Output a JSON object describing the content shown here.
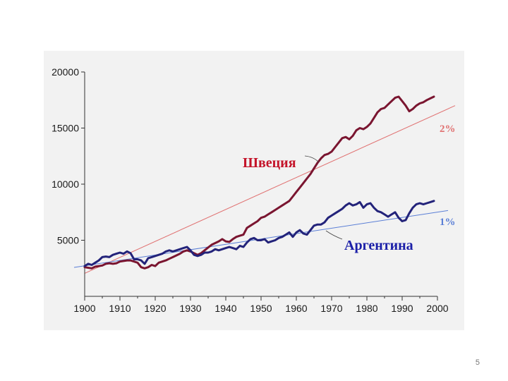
{
  "slide_number": "5",
  "chart_data": {
    "type": "line",
    "xlim": [
      1900,
      2000
    ],
    "ylim": [
      0,
      20000
    ],
    "x_ticks": [
      "1900",
      "1910",
      "1920",
      "1930",
      "1940",
      "1950",
      "1960",
      "1970",
      "1980",
      "1990",
      "2000"
    ],
    "y_ticks": [
      "5000",
      "10000",
      "15000",
      "20000"
    ],
    "grid": false,
    "series": [
      {
        "name": "Швеция",
        "color": "#7a1530",
        "label_color": "#c4142a",
        "x": [
          1900,
          1901,
          1902,
          1903,
          1904,
          1905,
          1906,
          1907,
          1908,
          1909,
          1910,
          1911,
          1912,
          1913,
          1914,
          1915,
          1916,
          1917,
          1918,
          1919,
          1920,
          1921,
          1922,
          1923,
          1924,
          1925,
          1926,
          1927,
          1928,
          1929,
          1930,
          1931,
          1932,
          1933,
          1934,
          1935,
          1936,
          1937,
          1938,
          1939,
          1940,
          1941,
          1942,
          1943,
          1944,
          1945,
          1946,
          1947,
          1948,
          1949,
          1950,
          1951,
          1952,
          1953,
          1954,
          1955,
          1956,
          1957,
          1958,
          1959,
          1960,
          1961,
          1962,
          1963,
          1964,
          1965,
          1966,
          1967,
          1968,
          1969,
          1970,
          1971,
          1972,
          1973,
          1974,
          1975,
          1976,
          1977,
          1978,
          1979,
          1980,
          1981,
          1982,
          1983,
          1984,
          1985,
          1986,
          1987,
          1988,
          1989,
          1990,
          1991,
          1992,
          1993,
          1994,
          1995,
          1996,
          1997,
          1998,
          1999
        ],
        "values": [
          2600,
          2550,
          2500,
          2650,
          2700,
          2750,
          2900,
          2950,
          2900,
          2950,
          3100,
          3150,
          3200,
          3200,
          3100,
          3000,
          2600,
          2500,
          2600,
          2800,
          2700,
          3000,
          3100,
          3200,
          3350,
          3500,
          3650,
          3800,
          4000,
          4100,
          4000,
          3850,
          3700,
          3850,
          4100,
          4350,
          4600,
          4750,
          4900,
          5100,
          4900,
          4850,
          5100,
          5300,
          5400,
          5500,
          6100,
          6300,
          6500,
          6700,
          7000,
          7100,
          7300,
          7500,
          7700,
          7900,
          8100,
          8300,
          8500,
          8900,
          9300,
          9700,
          10100,
          10500,
          10900,
          11400,
          11900,
          12300,
          12600,
          12700,
          12900,
          13300,
          13700,
          14100,
          14200,
          14000,
          14300,
          14800,
          15000,
          14900,
          15100,
          15400,
          15900,
          16400,
          16700,
          16800,
          17100,
          17400,
          17700,
          17800,
          17400,
          17000,
          16500,
          16700,
          17000,
          17200,
          17300,
          17500,
          17650,
          17800
        ]
      },
      {
        "name": "Аргентина",
        "color": "#23237a",
        "label_color": "#1c20a8",
        "x": [
          1900,
          1901,
          1902,
          1903,
          1904,
          1905,
          1906,
          1907,
          1908,
          1909,
          1910,
          1911,
          1912,
          1913,
          1914,
          1915,
          1916,
          1917,
          1918,
          1919,
          1920,
          1921,
          1922,
          1923,
          1924,
          1925,
          1926,
          1927,
          1928,
          1929,
          1930,
          1931,
          1932,
          1933,
          1934,
          1935,
          1936,
          1937,
          1938,
          1939,
          1940,
          1941,
          1942,
          1943,
          1944,
          1945,
          1946,
          1947,
          1948,
          1949,
          1950,
          1951,
          1952,
          1953,
          1954,
          1955,
          1956,
          1957,
          1958,
          1959,
          1960,
          1961,
          1962,
          1963,
          1964,
          1965,
          1966,
          1967,
          1968,
          1969,
          1970,
          1971,
          1972,
          1973,
          1974,
          1975,
          1976,
          1977,
          1978,
          1979,
          1980,
          1981,
          1982,
          1983,
          1984,
          1985,
          1986,
          1987,
          1988,
          1989,
          1990,
          1991,
          1992,
          1993,
          1994,
          1995,
          1996,
          1997,
          1998,
          1999
        ],
        "values": [
          2700,
          2900,
          2800,
          3000,
          3200,
          3500,
          3550,
          3500,
          3700,
          3800,
          3900,
          3800,
          4000,
          3850,
          3300,
          3300,
          3200,
          2900,
          3400,
          3500,
          3600,
          3700,
          3800,
          4000,
          4100,
          4000,
          4100,
          4200,
          4300,
          4400,
          4100,
          3700,
          3600,
          3700,
          3900,
          3900,
          4000,
          4200,
          4100,
          4200,
          4300,
          4400,
          4300,
          4200,
          4500,
          4400,
          4800,
          5100,
          5200,
          5000,
          5000,
          5100,
          4800,
          4900,
          5000,
          5200,
          5300,
          5500,
          5700,
          5300,
          5700,
          5900,
          5600,
          5500,
          5900,
          6300,
          6400,
          6400,
          6600,
          7000,
          7200,
          7400,
          7600,
          7800,
          8100,
          8300,
          8100,
          8200,
          8400,
          7900,
          8200,
          8300,
          7900,
          7600,
          7500,
          7300,
          7100,
          7300,
          7500,
          7000,
          6700,
          6800,
          7400,
          7900,
          8200,
          8300,
          8200,
          8300,
          8400,
          8500
        ]
      }
    ],
    "trend_lines": [
      {
        "label": "2%",
        "color": "#e07070",
        "x": [
          1900,
          2005
        ],
        "values": [
          2050,
          17000
        ]
      },
      {
        "label": "1%",
        "color": "#5b7fd6",
        "x": [
          1897,
          2003
        ],
        "values": [
          2580,
          7650
        ]
      }
    ]
  }
}
